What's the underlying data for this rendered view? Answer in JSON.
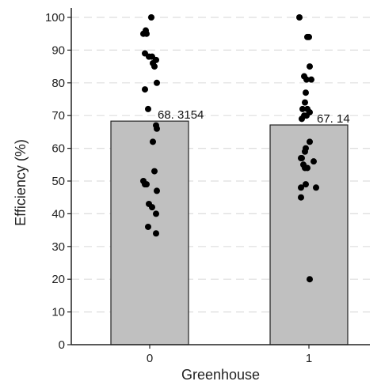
{
  "chart_data": {
    "type": "bar",
    "title": "",
    "xlabel": "Greenhouse",
    "ylabel": "Efficiency (%)",
    "categories": [
      "0",
      "1"
    ],
    "values": [
      68.3154,
      67.14
    ],
    "value_labels": [
      "68. 3154",
      "67. 14"
    ],
    "ylim": [
      0,
      100
    ],
    "yticks": [
      0,
      10,
      20,
      30,
      40,
      50,
      60,
      70,
      80,
      90,
      100
    ],
    "grid": "horizontal dashed",
    "bar_color": "#c0c0c0",
    "bar_edge_color": "#222222",
    "point_color": "#000000",
    "points": [
      {
        "category": "0",
        "values": [
          100,
          96,
          95,
          95,
          89,
          88,
          88,
          87,
          86,
          85,
          80,
          78,
          72,
          67,
          66,
          62,
          53,
          50,
          49,
          49,
          47,
          43,
          42,
          40,
          36,
          34
        ]
      },
      {
        "category": "1",
        "values": [
          100,
          94,
          94,
          85,
          82,
          81,
          81,
          77,
          74,
          72,
          72,
          71,
          70,
          70,
          69,
          62,
          60,
          59,
          57,
          57,
          56,
          55,
          54,
          54,
          49,
          48,
          48,
          45,
          20
        ]
      }
    ]
  }
}
